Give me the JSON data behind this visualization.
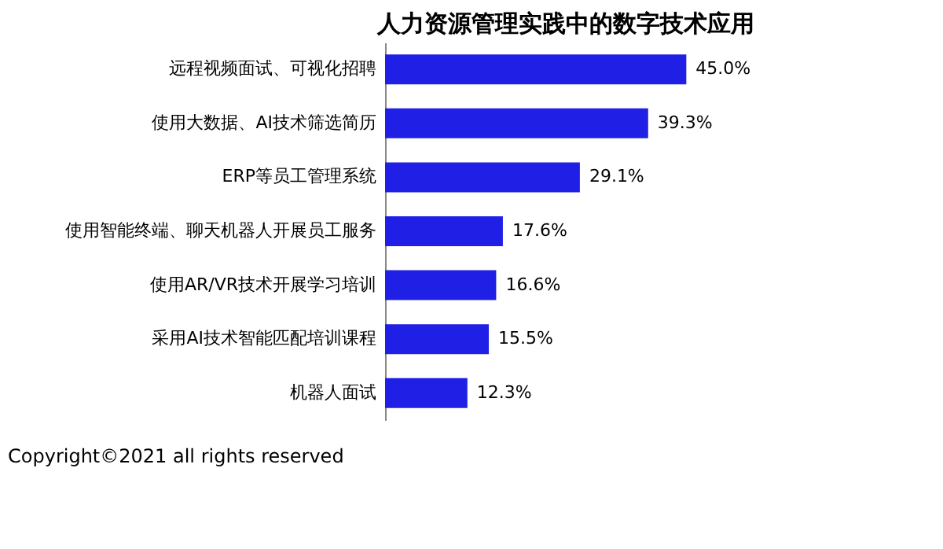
{
  "chart_data": {
    "type": "bar",
    "orientation": "horizontal",
    "title": "人力资源管理实践中的数字技术应用",
    "categories": [
      "远程视频面试、可视化招聘",
      "使用大数据、AI技术筛选简历",
      "ERP等员工管理系统",
      "使用智能终端、聊天机器人开展员工服务",
      "使用AR/VR技术开展学习培训",
      "采用AI技术智能匹配培训课程",
      "机器人面试"
    ],
    "values": [
      45.0,
      39.3,
      29.1,
      17.6,
      16.6,
      15.5,
      12.3
    ],
    "value_labels": [
      "45.0%",
      "39.3%",
      "29.1%",
      "17.6%",
      "16.6%",
      "15.5%",
      "12.3%"
    ],
    "color": "#1f1fe6",
    "annotations": [
      "Copyright©2021 all rights reserved"
    ],
    "grid": false
  }
}
